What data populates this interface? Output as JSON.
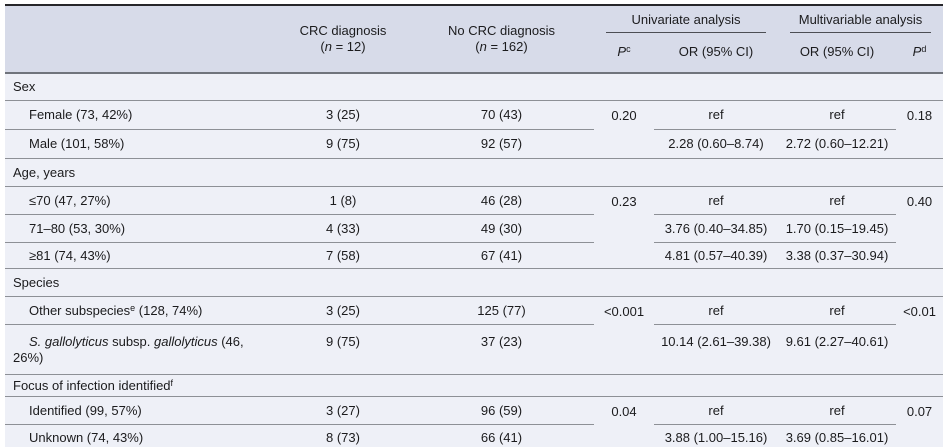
{
  "colors": {
    "header_bg": "#d7dbe9",
    "body_bg": "#eef0f7",
    "top_border": "#26262a",
    "bottom_border": "#17171a",
    "header_rule": "#70747c",
    "row_rule": "#8d9096"
  },
  "header": {
    "crc": {
      "line1": "CRC diagnosis",
      "line2_rich": [
        {
          "t": "("
        },
        {
          "t": "n",
          "i": 1
        },
        {
          "t": " = 12)"
        }
      ]
    },
    "nocrc": {
      "line1": "No CRC diagnosis",
      "line2_rich": [
        {
          "t": "("
        },
        {
          "t": "n",
          "i": 1
        },
        {
          "t": " = 162)"
        }
      ]
    },
    "univariate_label": "Univariate analysis",
    "multivariable_label": "Multivariable analysis",
    "p_uni_rich": [
      {
        "t": "P",
        "i": 1
      },
      {
        "t": "c",
        "sup": 1
      }
    ],
    "or_uni": "OR (95% CI)",
    "or_multi": "OR (95% CI)",
    "p_multi_rich": [
      {
        "t": "P",
        "i": 1
      },
      {
        "t": "d",
        "sup": 1
      }
    ]
  },
  "sections": [
    {
      "label_rich": [
        {
          "t": "Sex"
        }
      ],
      "rows": [
        {
          "label_rich": [
            {
              "t": "Female (73, 42%)"
            }
          ],
          "crc": "3 (25)",
          "nocrc": "70 (43)",
          "p_uni": "0.20",
          "or_uni": "ref",
          "or_multi": "ref",
          "p_multi": "0.18"
        },
        {
          "label_rich": [
            {
              "t": "Male (101, 58%)"
            }
          ],
          "crc": "9 (75)",
          "nocrc": "92 (57)",
          "or_uni": "2.28 (0.60–8.74)",
          "or_multi": "2.72 (0.60–12.21)"
        }
      ]
    },
    {
      "label_rich": [
        {
          "t": "Age, years"
        }
      ],
      "rows": [
        {
          "label_rich": [
            {
              "t": "≤70 (47, 27%)"
            }
          ],
          "crc": "1 (8)",
          "nocrc": "46 (28)",
          "p_uni": "0.23",
          "or_uni": "ref",
          "or_multi": "ref",
          "p_multi": "0.40"
        },
        {
          "label_rich": [
            {
              "t": "71–80 (53, 30%)"
            }
          ],
          "crc": "4 (33)",
          "nocrc": "49 (30)",
          "or_uni": "3.76 (0.40–34.85)",
          "or_multi": "1.70 (0.15–19.45)"
        },
        {
          "label_rich": [
            {
              "t": "≥81 (74, 43%)"
            }
          ],
          "crc": "7 (58)",
          "nocrc": "67 (41)",
          "or_uni": "4.81 (0.57–40.39)",
          "or_multi": "3.38 (0.37–30.94)"
        }
      ]
    },
    {
      "label_rich": [
        {
          "t": "Species"
        }
      ],
      "rows": [
        {
          "label_rich": [
            {
              "t": "Other subspecies"
            },
            {
              "t": "e",
              "sup": 1
            },
            {
              "t": " (128, 74%)"
            }
          ],
          "crc": "3 (25)",
          "nocrc": "125 (77)",
          "p_uni": "<0.001",
          "or_uni": "ref",
          "or_multi": "ref",
          "p_multi": "<0.01"
        },
        {
          "label_rich": [
            {
              "t": "S. gallolyticus",
              "i": 1
            },
            {
              "t": " subsp. "
            },
            {
              "t": "gallolyticus",
              "i": 1
            },
            {
              "t": " (46, 26%)"
            }
          ],
          "crc": "9 (75)",
          "nocrc": "37 (23)",
          "or_uni": "10.14 (2.61–39.38)",
          "or_multi": "9.61 (2.27–40.61)"
        }
      ]
    },
    {
      "label_rich": [
        {
          "t": "Focus of infection identified"
        },
        {
          "t": "f",
          "sup": 1
        }
      ],
      "rows": [
        {
          "label_rich": [
            {
              "t": "Identified (99, 57%)"
            }
          ],
          "crc": "3 (27)",
          "nocrc": "96 (59)",
          "p_uni": "0.04",
          "or_uni": "ref",
          "or_multi": "ref",
          "p_multi": "0.07"
        },
        {
          "label_rich": [
            {
              "t": "Unknown (74, 43%)"
            }
          ],
          "crc": "8 (73)",
          "nocrc": "66 (41)",
          "or_uni": "3.88 (1.00–15.16)",
          "or_multi": "3.69 (0.85–16.01)"
        }
      ]
    }
  ]
}
